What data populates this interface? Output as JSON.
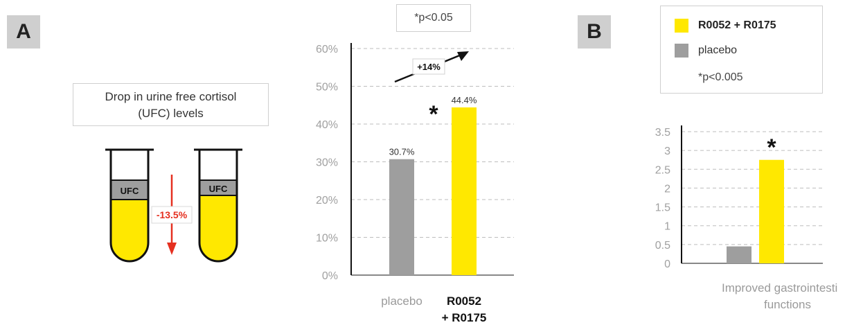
{
  "panels": {
    "a": "A",
    "b": "B"
  },
  "ufc_caption": {
    "line1": "Drop in urine free cortisol",
    "line2": "(UFC) levels"
  },
  "tube_label": "UFC",
  "drop_label": "-13.5%",
  "colors": {
    "grey": "#9e9e9e",
    "yellow": "#ffe800",
    "red": "#e53020",
    "grid": "#bdbdbd",
    "axis_text": "#a0a0a0"
  },
  "legend": {
    "series1": "R0052 + R0175",
    "series2": "placebo",
    "pvalue": "*p<0.005"
  },
  "chart_data": [
    {
      "type": "bar",
      "title": "*p<0.05",
      "categories": [
        "placebo",
        "R0052 + R0175"
      ],
      "category_lines": [
        [
          "placebo"
        ],
        [
          "R0052",
          "+ R0175"
        ]
      ],
      "values": [
        30.7,
        44.4
      ],
      "value_labels": [
        "30.7%",
        "44.4%"
      ],
      "colors": [
        "#9e9e9e",
        "#ffe800"
      ],
      "yticks": [
        "0%",
        "10%",
        "20%",
        "30%",
        "40%",
        "50%",
        "60%"
      ],
      "ylim": [
        0,
        60
      ],
      "grid": true,
      "significance": "*",
      "annotation": "+14%"
    },
    {
      "type": "bar",
      "xlabel_lines": [
        "Improved gastrointestinal",
        "functions"
      ],
      "series": [
        {
          "name": "placebo",
          "values": [
            0.45
          ]
        },
        {
          "name": "R0052 + R0175",
          "values": [
            2.75
          ]
        }
      ],
      "colors": [
        "#9e9e9e",
        "#ffe800"
      ],
      "yticks": [
        "0",
        "0.5",
        "1",
        "1.5",
        "2",
        "2.5",
        "3",
        "3.5"
      ],
      "ylim": [
        0,
        3.5
      ],
      "grid": true,
      "significance": "*"
    }
  ]
}
